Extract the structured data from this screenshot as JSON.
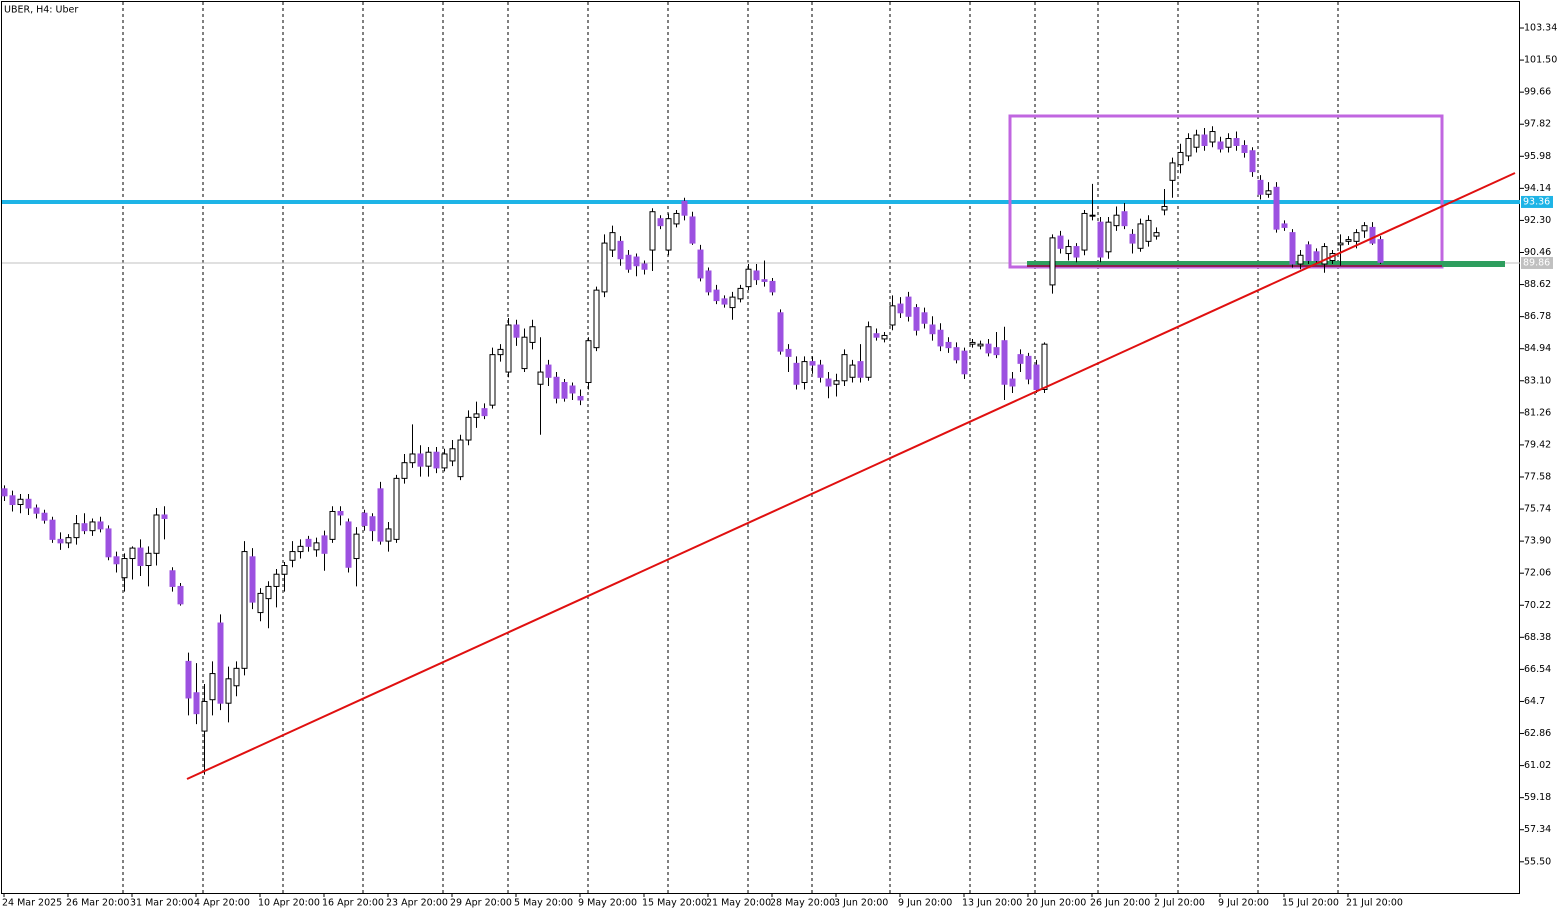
{
  "chart_data": {
    "type": "candlestick",
    "title": "UBER, H4:  Uber",
    "ylim": [
      53.71,
      104.89
    ],
    "yticks": [
      {
        "value": 55.5,
        "label": "55.50"
      },
      57.34,
      59.18,
      61.02,
      62.86,
      64.7,
      66.54,
      68.38,
      70.22,
      72.06,
      {
        "value": 73.9,
        "label": "73.90"
      },
      75.74,
      77.58,
      79.42,
      81.26,
      {
        "value": 83.1,
        "label": "83.10"
      },
      84.94,
      86.78,
      88.62,
      90.46,
      {
        "value": 92.3,
        "label": "92.30"
      },
      94.14,
      95.98,
      97.82,
      99.66,
      {
        "value": 101.5,
        "label": "101.50"
      },
      103.34
    ],
    "up_color": "#ffffff",
    "down_color": "#9c51e0",
    "wick_color": "#000000",
    "price_lines": [
      {
        "value": 93.36,
        "color": "#1eb4e6"
      },
      {
        "value": 89.86,
        "color": "#c0c0c0"
      }
    ],
    "categories": [
      "24 Mar 2025",
      null,
      null,
      null,
      null,
      null,
      null,
      null,
      "26 Mar 20:00",
      null,
      null,
      null,
      null,
      null,
      null,
      null,
      "31 Mar 20:00",
      null,
      null,
      null,
      null,
      null,
      null,
      null,
      "4 Apr 20:00",
      null,
      null,
      null,
      null,
      null,
      null,
      null,
      "10 Apr 20:00",
      null,
      null,
      null,
      null,
      null,
      null,
      null,
      "16 Apr 20:00",
      null,
      null,
      null,
      null,
      null,
      null,
      null,
      "23 Apr 20:00",
      null,
      null,
      null,
      null,
      null,
      null,
      null,
      "29 Apr 20:00",
      null,
      null,
      null,
      null,
      null,
      null,
      null,
      "5 May 20:00",
      null,
      null,
      null,
      null,
      null,
      null,
      null,
      "9 May 20:00",
      null,
      null,
      null,
      null,
      null,
      null,
      null,
      "15 May 20:00",
      null,
      null,
      null,
      null,
      null,
      null,
      null,
      "21 May 20:00",
      null,
      null,
      null,
      null,
      null,
      null,
      null,
      "28 May 20:00",
      null,
      null,
      null,
      null,
      null,
      null,
      null,
      "3 Jun 20:00",
      null,
      null,
      null,
      null,
      null,
      null,
      null,
      "9 Jun 20:00",
      null,
      null,
      null,
      null,
      null,
      null,
      null,
      "13 Jun 20:00",
      null,
      null,
      null,
      null,
      null,
      null,
      null,
      "20 Jun 20:00",
      null,
      null,
      null,
      null,
      null,
      null,
      null,
      "26 Jun 20:00",
      null,
      null,
      null,
      null,
      null,
      null,
      null,
      "2 Jul 20:00",
      null,
      null,
      null,
      null,
      null,
      null,
      null,
      "9 Jul 20:00",
      null,
      null,
      null,
      null,
      null,
      null,
      null,
      "15 Jul 20:00",
      null,
      null,
      null,
      null,
      null,
      null,
      null,
      "21 Jul 20:00",
      null,
      null,
      null,
      null
    ],
    "candles": [
      [
        76.9,
        77.1,
        76.2,
        76.5
      ],
      [
        76.5,
        76.8,
        75.6,
        76.0
      ],
      [
        76.0,
        76.6,
        75.5,
        76.3
      ],
      [
        76.3,
        76.6,
        75.4,
        75.8
      ],
      [
        75.8,
        76.0,
        75.2,
        75.5
      ],
      [
        75.5,
        75.7,
        74.9,
        75.1
      ],
      [
        75.1,
        75.3,
        73.8,
        74.0
      ],
      [
        74.0,
        74.4,
        73.4,
        73.8
      ],
      [
        73.8,
        74.3,
        73.5,
        74.1
      ],
      [
        74.1,
        75.4,
        73.7,
        74.9
      ],
      [
        74.9,
        75.5,
        74.3,
        74.5
      ],
      [
        74.5,
        75.2,
        74.2,
        75.0
      ],
      [
        75.0,
        75.3,
        74.4,
        74.6
      ],
      [
        74.6,
        74.8,
        72.8,
        73.0
      ],
      [
        73.0,
        73.3,
        72.1,
        72.6
      ],
      [
        71.8,
        73.2,
        71.0,
        72.9
      ],
      [
        72.9,
        73.6,
        71.7,
        73.5
      ],
      [
        73.5,
        74.0,
        71.9,
        72.5
      ],
      [
        72.5,
        73.6,
        71.3,
        73.2
      ],
      [
        73.2,
        75.8,
        72.5,
        75.4
      ],
      [
        75.4,
        75.9,
        74.0,
        75.2
      ],
      [
        72.2,
        72.4,
        71.0,
        71.3
      ],
      [
        71.3,
        71.5,
        70.2,
        70.3
      ],
      [
        67.0,
        67.5,
        63.9,
        64.9
      ],
      [
        65.2,
        66.9,
        63.4,
        64.0
      ],
      [
        63.0,
        65.7,
        60.5,
        64.7
      ],
      [
        64.8,
        67.0,
        63.9,
        66.3
      ],
      [
        69.2,
        69.7,
        64.2,
        64.6
      ],
      [
        64.6,
        66.7,
        63.5,
        66.0
      ],
      [
        65.6,
        67.0,
        65.0,
        66.6
      ],
      [
        66.6,
        73.9,
        66.2,
        73.3
      ],
      [
        73.0,
        73.5,
        70.0,
        70.4
      ],
      [
        69.8,
        71.2,
        69.3,
        70.9
      ],
      [
        70.6,
        71.6,
        68.9,
        71.3
      ],
      [
        71.3,
        72.3,
        70.1,
        72.0
      ],
      [
        72.0,
        72.7,
        71.0,
        72.5
      ],
      [
        72.8,
        73.9,
        72.4,
        73.3
      ],
      [
        73.3,
        74.0,
        72.9,
        73.6
      ],
      [
        74.0,
        74.2,
        73.3,
        73.6
      ],
      [
        73.4,
        74.1,
        73.0,
        73.8
      ],
      [
        74.2,
        74.5,
        72.2,
        73.2
      ],
      [
        74.0,
        75.9,
        73.8,
        75.6
      ],
      [
        75.6,
        75.9,
        74.8,
        75.4
      ],
      [
        75.0,
        75.2,
        72.1,
        72.4
      ],
      [
        72.9,
        74.7,
        71.3,
        74.3
      ],
      [
        75.5,
        75.7,
        74.5,
        74.8
      ],
      [
        75.3,
        75.5,
        73.9,
        74.5
      ],
      [
        76.9,
        77.3,
        73.7,
        73.9
      ],
      [
        73.9,
        75.0,
        73.3,
        74.6
      ],
      [
        74.0,
        77.7,
        73.8,
        77.5
      ],
      [
        77.5,
        78.9,
        77.2,
        78.4
      ],
      [
        78.4,
        80.6,
        78.1,
        78.9
      ],
      [
        78.9,
        79.4,
        77.6,
        78.2
      ],
      [
        78.2,
        79.3,
        77.6,
        79.0
      ],
      [
        79.0,
        79.3,
        77.8,
        78.1
      ],
      [
        78.1,
        79.2,
        77.9,
        78.9
      ],
      [
        78.5,
        79.7,
        78.2,
        79.2
      ],
      [
        77.6,
        80.0,
        77.4,
        79.7
      ],
      [
        79.7,
        81.4,
        79.4,
        81.0
      ],
      [
        81.0,
        81.9,
        80.4,
        81.2
      ],
      [
        81.5,
        81.8,
        80.9,
        81.1
      ],
      [
        81.7,
        85.0,
        81.5,
        84.6
      ],
      [
        84.6,
        85.2,
        84.2,
        84.9
      ],
      [
        83.6,
        86.7,
        83.3,
        86.3
      ],
      [
        86.3,
        86.6,
        85.1,
        85.6
      ],
      [
        83.8,
        86.1,
        83.6,
        85.6
      ],
      [
        85.3,
        86.6,
        84.9,
        86.2
      ],
      [
        82.9,
        85.6,
        80.0,
        83.6
      ],
      [
        84.0,
        84.3,
        82.8,
        83.3
      ],
      [
        83.3,
        83.6,
        81.8,
        82.1
      ],
      [
        83.0,
        83.2,
        81.9,
        82.1
      ],
      [
        82.8,
        83.0,
        82.0,
        82.4
      ],
      [
        82.2,
        82.6,
        81.7,
        82.0
      ],
      [
        83.0,
        85.6,
        82.6,
        85.4
      ],
      [
        85.0,
        88.5,
        84.8,
        88.3
      ],
      [
        88.2,
        91.5,
        87.9,
        91.0
      ],
      [
        90.6,
        92.0,
        90.2,
        91.6
      ],
      [
        91.1,
        91.4,
        89.7,
        90.1
      ],
      [
        90.3,
        90.6,
        89.3,
        89.5
      ],
      [
        90.2,
        90.4,
        89.1,
        89.7
      ],
      [
        89.8,
        90.0,
        89.2,
        89.5
      ],
      [
        90.6,
        93.0,
        89.4,
        92.8
      ],
      [
        92.4,
        92.6,
        91.8,
        92.0
      ],
      [
        90.6,
        92.7,
        90.3,
        92.4
      ],
      [
        92.1,
        92.9,
        91.9,
        92.7
      ],
      [
        93.4,
        93.6,
        92.3,
        92.6
      ],
      [
        92.5,
        92.8,
        90.9,
        91.0
      ],
      [
        90.6,
        90.9,
        88.8,
        89.0
      ],
      [
        89.4,
        89.6,
        88.0,
        88.2
      ],
      [
        88.3,
        88.6,
        87.5,
        87.7
      ],
      [
        87.8,
        88.0,
        87.3,
        87.5
      ],
      [
        87.3,
        88.2,
        86.6,
        87.9
      ],
      [
        87.8,
        88.6,
        87.6,
        88.4
      ],
      [
        88.5,
        89.8,
        88.3,
        89.5
      ],
      [
        89.4,
        89.8,
        88.6,
        88.9
      ],
      [
        88.9,
        90.0,
        88.5,
        88.8
      ],
      [
        88.8,
        89.0,
        88.0,
        88.2
      ],
      [
        87.0,
        87.2,
        84.6,
        84.8
      ],
      [
        84.9,
        85.2,
        83.6,
        84.5
      ],
      [
        84.1,
        84.5,
        82.6,
        82.9
      ],
      [
        83.0,
        84.5,
        82.6,
        84.2
      ],
      [
        84.2,
        84.5,
        83.5,
        84.0
      ],
      [
        84.0,
        84.3,
        83.0,
        83.3
      ],
      [
        83.2,
        83.6,
        82.1,
        82.8
      ],
      [
        82.9,
        83.5,
        82.2,
        83.1
      ],
      [
        83.1,
        84.9,
        82.8,
        84.6
      ],
      [
        83.3,
        84.3,
        83.0,
        84.0
      ],
      [
        84.2,
        85.2,
        83.0,
        83.3
      ],
      [
        83.3,
        86.5,
        83.1,
        86.2
      ],
      [
        85.8,
        86.1,
        85.4,
        85.6
      ],
      [
        85.5,
        85.9,
        85.3,
        85.7
      ],
      [
        86.3,
        88.0,
        86.0,
        87.4
      ],
      [
        87.5,
        87.9,
        86.7,
        87.0
      ],
      [
        87.9,
        88.2,
        86.5,
        86.8
      ],
      [
        87.3,
        87.5,
        85.7,
        86.0
      ],
      [
        87.0,
        87.3,
        86.1,
        86.4
      ],
      [
        86.3,
        86.8,
        85.4,
        85.8
      ],
      [
        86.0,
        86.4,
        84.8,
        85.1
      ],
      [
        85.3,
        85.6,
        84.7,
        85.0
      ],
      [
        85.0,
        85.3,
        84.1,
        84.3
      ],
      [
        84.8,
        85.0,
        83.2,
        83.5
      ],
      [
        85.2,
        85.5,
        85.0,
        85.3
      ],
      [
        85.1,
        85.4,
        84.9,
        85.2
      ],
      [
        85.2,
        85.5,
        84.5,
        84.7
      ],
      [
        85.0,
        85.9,
        84.4,
        84.6
      ],
      [
        85.4,
        86.2,
        82.0,
        82.9
      ],
      [
        83.2,
        83.6,
        82.4,
        82.8
      ],
      [
        84.6,
        84.9,
        83.6,
        84.1
      ],
      [
        84.5,
        84.7,
        82.9,
        83.2
      ],
      [
        84.0,
        84.3,
        82.4,
        82.6
      ],
      [
        82.6,
        85.3,
        82.4,
        85.2
      ],
      [
        88.6,
        91.5,
        88.1,
        91.3
      ],
      [
        91.4,
        91.7,
        90.4,
        90.7
      ],
      [
        90.4,
        91.2,
        90.0,
        90.8
      ],
      [
        90.8,
        91.0,
        89.9,
        90.2
      ],
      [
        90.6,
        92.9,
        90.3,
        92.7
      ],
      [
        92.6,
        94.4,
        92.3,
        92.6
      ],
      [
        92.2,
        92.5,
        89.9,
        90.2
      ],
      [
        90.5,
        92.5,
        90.1,
        92.2
      ],
      [
        92.0,
        93.1,
        91.7,
        92.6
      ],
      [
        92.8,
        93.3,
        91.8,
        92.0
      ],
      [
        91.5,
        91.8,
        90.4,
        91.0
      ],
      [
        90.7,
        92.4,
        90.5,
        92.1
      ],
      [
        91.1,
        92.6,
        90.8,
        92.3
      ],
      [
        91.4,
        91.9,
        91.2,
        91.6
      ],
      [
        92.9,
        94.1,
        92.6,
        93.1
      ],
      [
        94.6,
        95.9,
        93.6,
        95.6
      ],
      [
        95.5,
        96.7,
        95.0,
        96.2
      ],
      [
        96.0,
        97.3,
        95.7,
        97.0
      ],
      [
        96.5,
        97.5,
        96.2,
        97.2
      ],
      [
        97.2,
        97.6,
        96.3,
        96.6
      ],
      [
        96.8,
        97.7,
        96.5,
        97.4
      ],
      [
        96.8,
        97.1,
        96.2,
        96.4
      ],
      [
        96.5,
        97.3,
        96.2,
        97.0
      ],
      [
        97.0,
        97.4,
        96.3,
        96.6
      ],
      [
        96.6,
        96.9,
        95.9,
        96.2
      ],
      [
        96.3,
        96.5,
        94.8,
        95.1
      ],
      [
        94.6,
        94.9,
        93.5,
        93.8
      ],
      [
        93.8,
        94.5,
        93.6,
        94.0
      ],
      [
        94.2,
        94.5,
        91.6,
        91.8
      ],
      [
        92.1,
        92.3,
        91.7,
        91.9
      ],
      [
        91.6,
        91.8,
        89.6,
        89.8
      ],
      [
        89.8,
        90.6,
        89.5,
        90.3
      ],
      [
        90.9,
        91.1,
        89.8,
        90.0
      ],
      [
        90.5,
        90.7,
        89.8,
        90.0
      ],
      [
        89.8,
        91.0,
        89.3,
        90.8
      ],
      [
        90.0,
        90.6,
        89.8,
        90.4
      ],
      [
        90.9,
        91.5,
        89.7,
        91.0
      ],
      [
        91.1,
        91.4,
        90.9,
        91.2
      ],
      [
        91.1,
        91.8,
        90.7,
        91.6
      ],
      [
        91.7,
        92.2,
        91.3,
        92.0
      ],
      [
        91.9,
        92.2,
        90.9,
        91.0
      ],
      [
        91.2,
        91.4,
        89.8,
        89.9
      ]
    ]
  }
}
